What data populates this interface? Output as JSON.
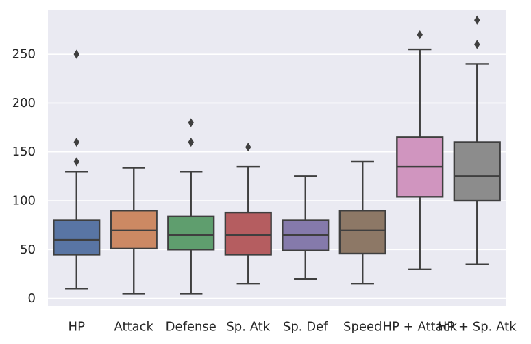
{
  "chart_data": {
    "type": "box",
    "title": "",
    "xlabel": "",
    "ylabel": "",
    "ylim": [
      -8,
      295
    ],
    "yticks": [
      0,
      50,
      100,
      150,
      200,
      250
    ],
    "grid": true,
    "background": "#eaeaf2",
    "categories": [
      "HP",
      "Attack",
      "Defense",
      "Sp. Atk",
      "Sp. Def",
      "Speed",
      "HP + Attack",
      "HP + Sp. Atk"
    ],
    "colors": [
      "#5975a4",
      "#cc8963",
      "#5f9e6e",
      "#b55d60",
      "#857aab",
      "#8d7866",
      "#d095bf",
      "#8c8c8c"
    ],
    "boxes": [
      {
        "name": "HP",
        "whisker_low": 10,
        "q1": 45,
        "median": 60,
        "q3": 80,
        "whisker_high": 130,
        "outliers": [
          140,
          160,
          250
        ]
      },
      {
        "name": "Attack",
        "whisker_low": 5,
        "q1": 51,
        "median": 70,
        "q3": 90,
        "whisker_high": 134,
        "outliers": []
      },
      {
        "name": "Defense",
        "whisker_low": 5,
        "q1": 50,
        "median": 65,
        "q3": 84,
        "whisker_high": 130,
        "outliers": [
          160,
          180
        ]
      },
      {
        "name": "Sp. Atk",
        "whisker_low": 15,
        "q1": 45,
        "median": 65,
        "q3": 88,
        "whisker_high": 135,
        "outliers": [
          155
        ]
      },
      {
        "name": "Sp. Def",
        "whisker_low": 20,
        "q1": 49,
        "median": 65,
        "q3": 80,
        "whisker_high": 125,
        "outliers": []
      },
      {
        "name": "Speed",
        "whisker_low": 15,
        "q1": 46,
        "median": 70,
        "q3": 90,
        "whisker_high": 140,
        "outliers": []
      },
      {
        "name": "HP + Attack",
        "whisker_low": 30,
        "q1": 104,
        "median": 135,
        "q3": 165,
        "whisker_high": 255,
        "outliers": [
          270
        ]
      },
      {
        "name": "HP + Sp. Atk",
        "whisker_low": 35,
        "q1": 100,
        "median": 125,
        "q3": 160,
        "whisker_high": 240,
        "outliers": [
          260,
          285
        ]
      }
    ]
  }
}
